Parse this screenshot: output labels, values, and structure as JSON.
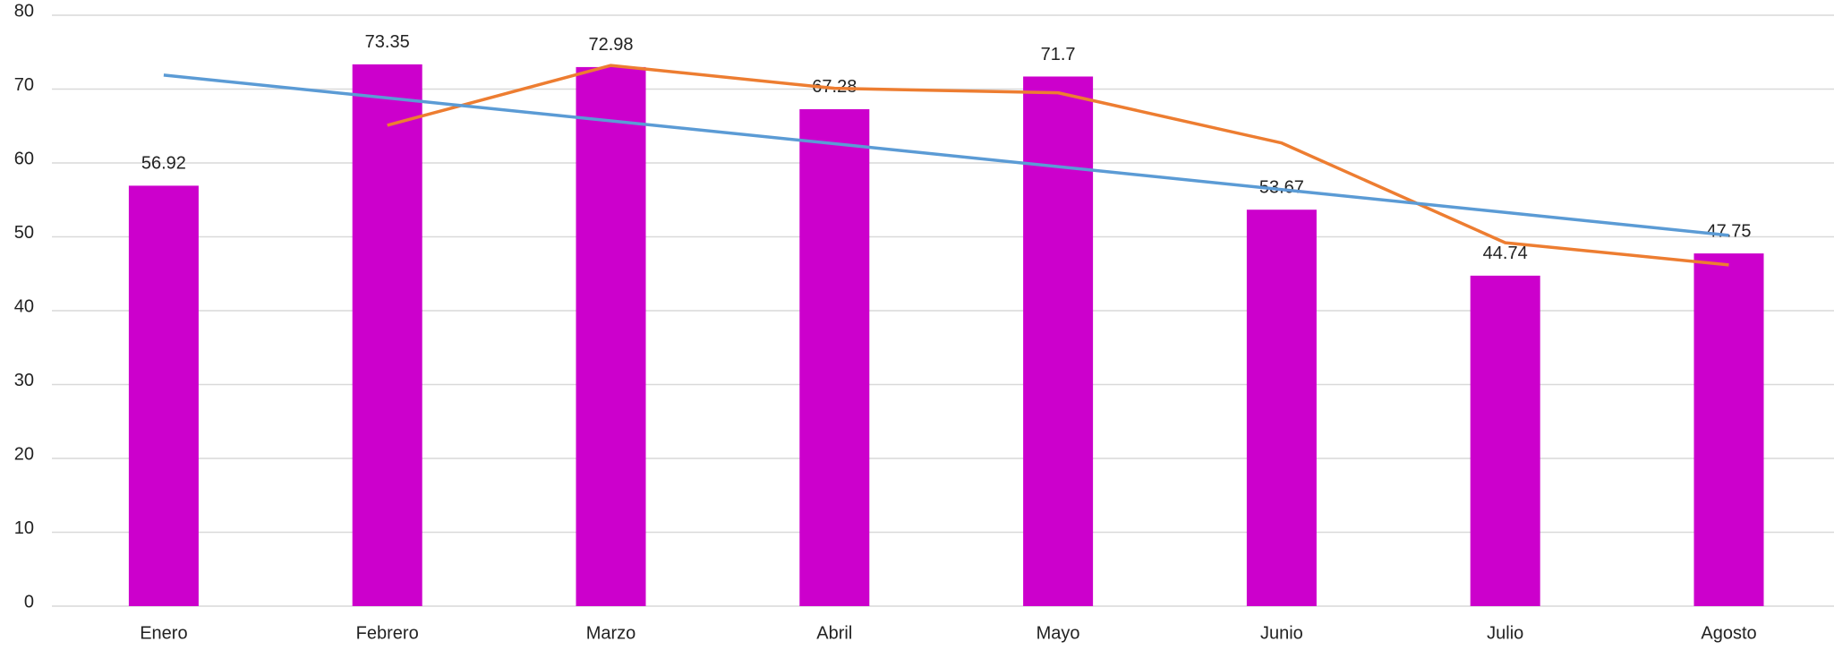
{
  "chart_data": {
    "type": "bar",
    "categories": [
      "Enero",
      "Febrero",
      "Marzo",
      "Abril",
      "Mayo",
      "Junio",
      "Julio",
      "Agosto"
    ],
    "values": [
      56.92,
      73.35,
      72.98,
      67.28,
      71.7,
      53.67,
      44.74,
      47.75
    ],
    "color": "#cc00cc",
    "show_value_labels": true,
    "lines": [
      {
        "color": "#ed7d31",
        "values": [
          null,
          65.1,
          73.2,
          70.1,
          69.5,
          62.7,
          49.2,
          46.2
        ]
      },
      {
        "color": "#5b9bd5",
        "values": [
          71.9,
          68.8,
          65.7,
          62.6,
          59.5,
          56.4,
          53.3,
          50.2
        ]
      }
    ],
    "ylim": [
      0,
      80
    ],
    "yticks": [
      0,
      10,
      20,
      30,
      40,
      50,
      60,
      70,
      80
    ],
    "grid": true
  }
}
